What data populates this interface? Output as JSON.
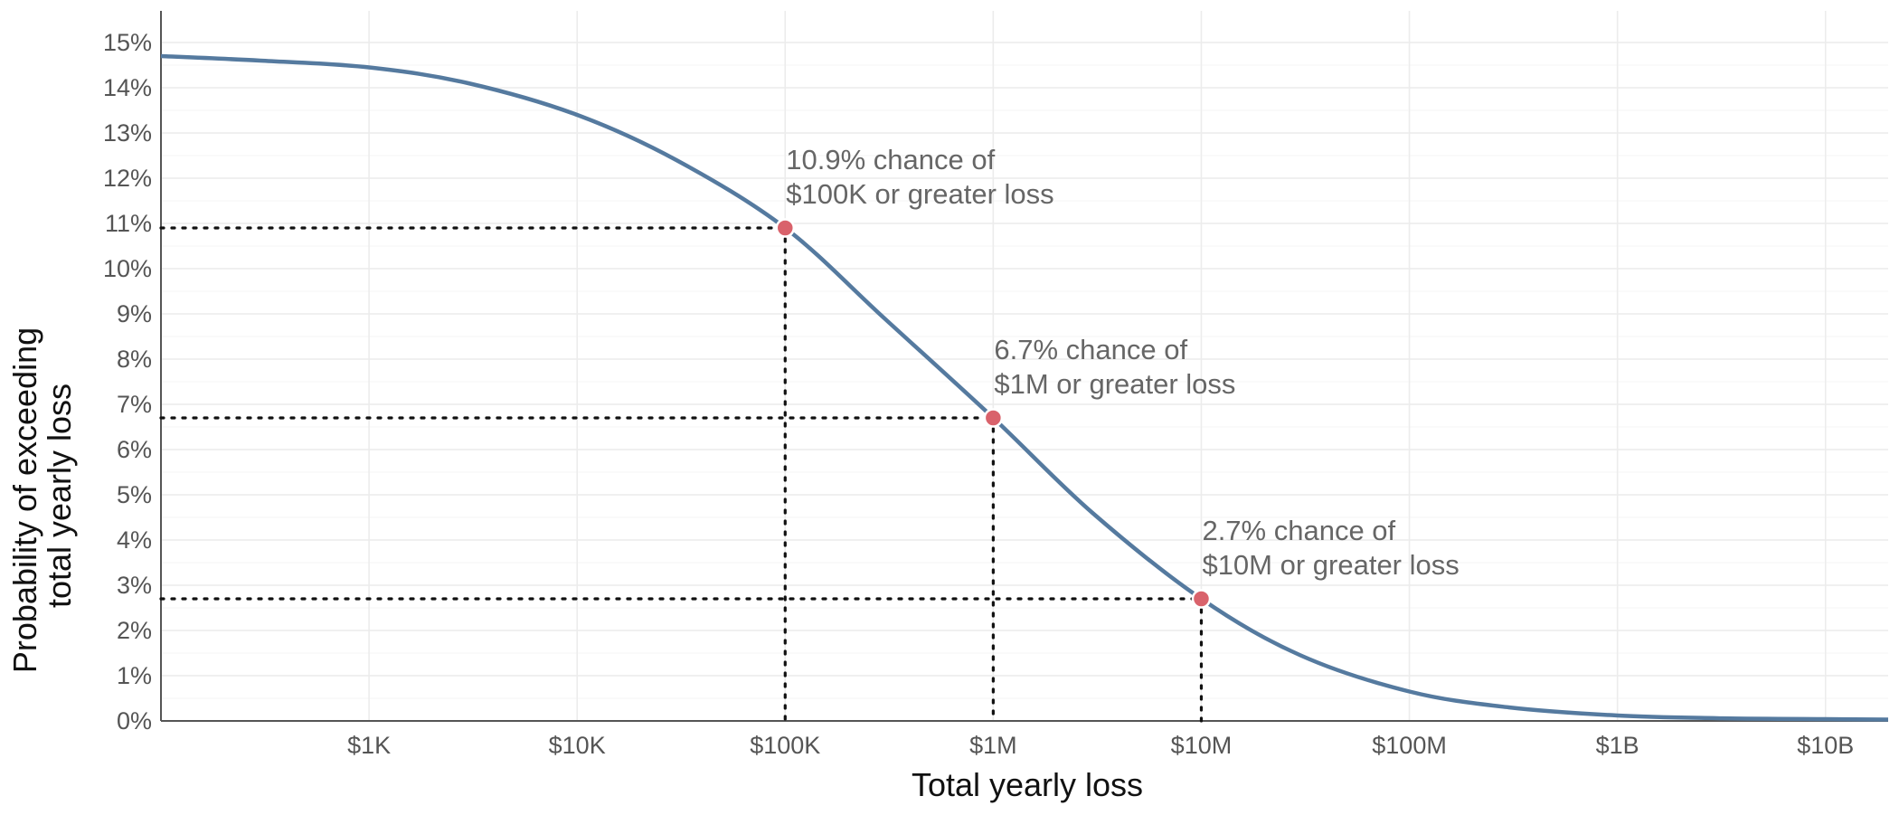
{
  "chart_data": {
    "type": "line",
    "title": "",
    "xlabel": "Total yearly loss",
    "ylabel_lines": [
      "Probability of exceeding",
      "total yearly loss"
    ],
    "x_scale": "log",
    "x_ticks": [
      {
        "value": 1000,
        "label": "$1K"
      },
      {
        "value": 10000,
        "label": "$10K"
      },
      {
        "value": 100000,
        "label": "$100K"
      },
      {
        "value": 1000000,
        "label": "$1M"
      },
      {
        "value": 10000000,
        "label": "$10M"
      },
      {
        "value": 100000000,
        "label": "$100M"
      },
      {
        "value": 1000000000,
        "label": "$1B"
      },
      {
        "value": 10000000000,
        "label": "$10B"
      }
    ],
    "y_ticks": [
      {
        "value": 0,
        "label": "0%"
      },
      {
        "value": 1,
        "label": "1%"
      },
      {
        "value": 2,
        "label": "2%"
      },
      {
        "value": 3,
        "label": "3%"
      },
      {
        "value": 4,
        "label": "4%"
      },
      {
        "value": 5,
        "label": "5%"
      },
      {
        "value": 6,
        "label": "6%"
      },
      {
        "value": 7,
        "label": "7%"
      },
      {
        "value": 8,
        "label": "8%"
      },
      {
        "value": 9,
        "label": "9%"
      },
      {
        "value": 10,
        "label": "10%"
      },
      {
        "value": 11,
        "label": "11%"
      },
      {
        "value": 12,
        "label": "12%"
      },
      {
        "value": 13,
        "label": "13%"
      },
      {
        "value": 14,
        "label": "14%"
      },
      {
        "value": 15,
        "label": "15%"
      }
    ],
    "xlim": [
      100,
      20000000000
    ],
    "ylim": [
      0,
      15.7
    ],
    "grid": true,
    "series": [
      {
        "color": "#557a9f",
        "x": [
          100,
          300,
          1000,
          3000,
          10000,
          30000,
          100000,
          300000,
          1000000,
          3000000,
          10000000,
          30000000,
          100000000,
          300000000,
          1000000000,
          3000000000,
          10000000000,
          20000000000
        ],
        "y": [
          14.7,
          14.6,
          14.45,
          14.1,
          13.4,
          12.4,
          10.9,
          8.9,
          6.7,
          4.6,
          2.7,
          1.45,
          0.65,
          0.3,
          0.12,
          0.06,
          0.04,
          0.03
        ]
      }
    ],
    "highlights": [
      {
        "x": 100000,
        "y": 10.9,
        "label_lines": [
          "10.9% chance of",
          "$100K or greater loss"
        ]
      },
      {
        "x": 1000000,
        "y": 6.7,
        "label_lines": [
          "6.7% chance of",
          "$1M or greater loss"
        ]
      },
      {
        "x": 10000000,
        "y": 2.7,
        "label_lines": [
          "2.7% chance of",
          "$10M or greater loss"
        ]
      }
    ],
    "highlight_color": "#d9626b",
    "guide_color": "#111111",
    "grid_color": "#ececec",
    "axis_color": "#555555"
  }
}
